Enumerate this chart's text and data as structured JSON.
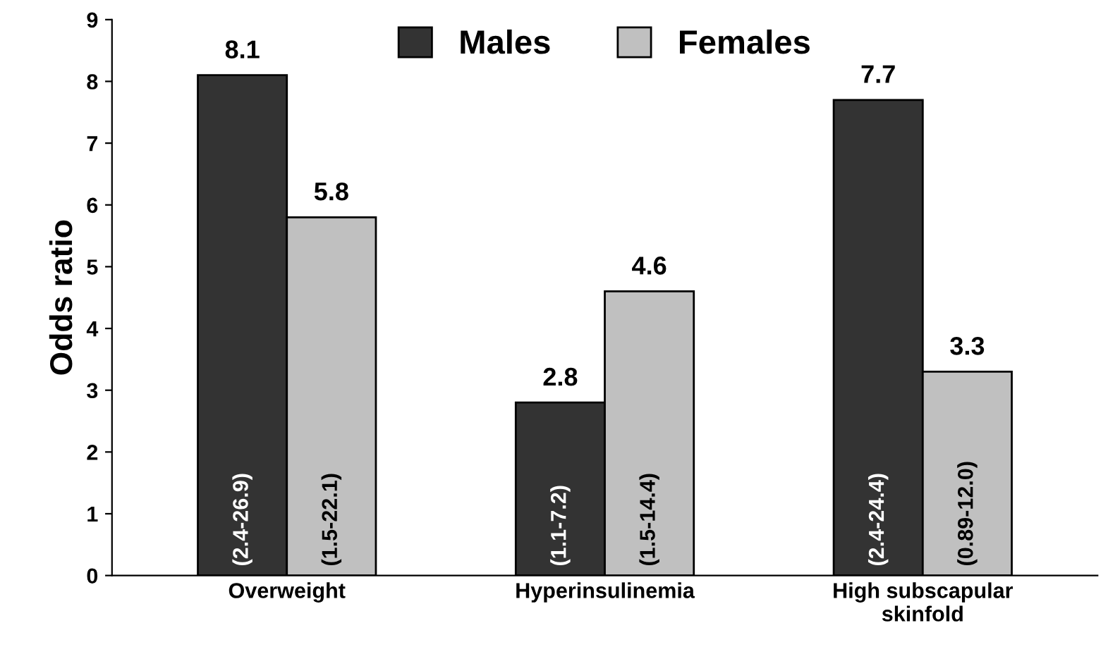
{
  "chart_data": {
    "type": "bar",
    "ylabel": "Odds ratio",
    "categories": [
      "Overweight",
      "Hyperinsulinemia",
      "High subscapular\nskinfold"
    ],
    "series": [
      {
        "name": "Males",
        "color": "#333333",
        "values": [
          8.1,
          2.8,
          7.7
        ]
      },
      {
        "name": "Females",
        "color": "#c0c0c0",
        "values": [
          5.8,
          4.6,
          3.3
        ]
      }
    ],
    "ylim": [
      0,
      9
    ],
    "yticks": [
      0,
      1,
      2,
      3,
      4,
      5,
      6,
      7,
      8,
      9
    ],
    "data_labels": true,
    "grid": false,
    "legend": "top",
    "annotations": [
      "(2.4-26.9)",
      "(1.1-7.2)",
      "(2.4-24.4)",
      "(1.5-22.1)",
      "(1.5-14.4)",
      "(0.89-12.0)"
    ]
  }
}
